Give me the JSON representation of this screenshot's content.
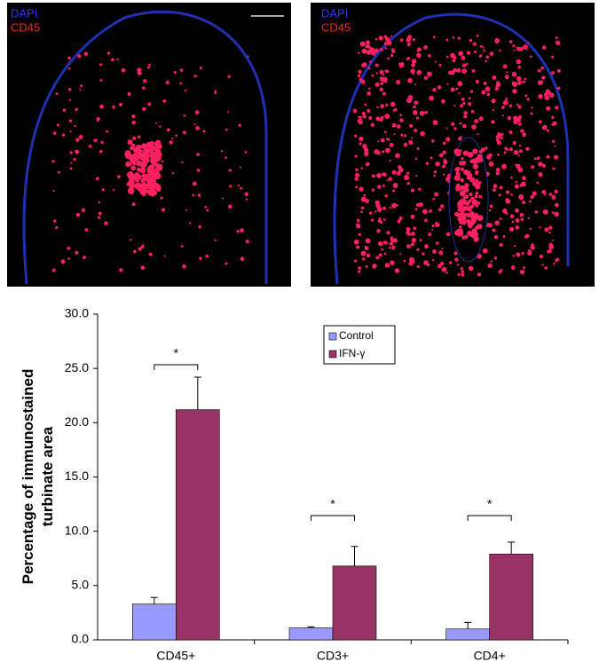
{
  "images": [
    {
      "labels": [
        "DAPI",
        "CD45"
      ]
    },
    {
      "labels": [
        "DAPI",
        "CD45"
      ]
    }
  ],
  "chart_data": {
    "type": "bar",
    "ylabel": [
      "Percentage of immunostained",
      "turbinate area"
    ],
    "categories": [
      "CD45+",
      "CD3+",
      "CD4+"
    ],
    "series": [
      {
        "name": "Control",
        "color": "#9999ff",
        "values": [
          3.3,
          1.1,
          1.0
        ],
        "errors": [
          0.6,
          0.1,
          0.6
        ]
      },
      {
        "name": "IFN-γ",
        "color": "#993366",
        "values": [
          21.2,
          6.8,
          7.9
        ],
        "errors": [
          3.0,
          1.8,
          1.1
        ]
      }
    ],
    "significance": [
      "*",
      "*",
      "*"
    ],
    "ylim": [
      0,
      30
    ],
    "yticks": [
      {
        "value": 0,
        "label": "0.0"
      },
      {
        "value": 5,
        "label": "5.0"
      },
      {
        "value": 10,
        "label": "10.0"
      },
      {
        "value": 15,
        "label": "15.0"
      },
      {
        "value": 20,
        "label": "20.0"
      },
      {
        "value": 25,
        "label": "25.0"
      },
      {
        "value": 30,
        "label": "30.0"
      }
    ],
    "grid": false
  }
}
